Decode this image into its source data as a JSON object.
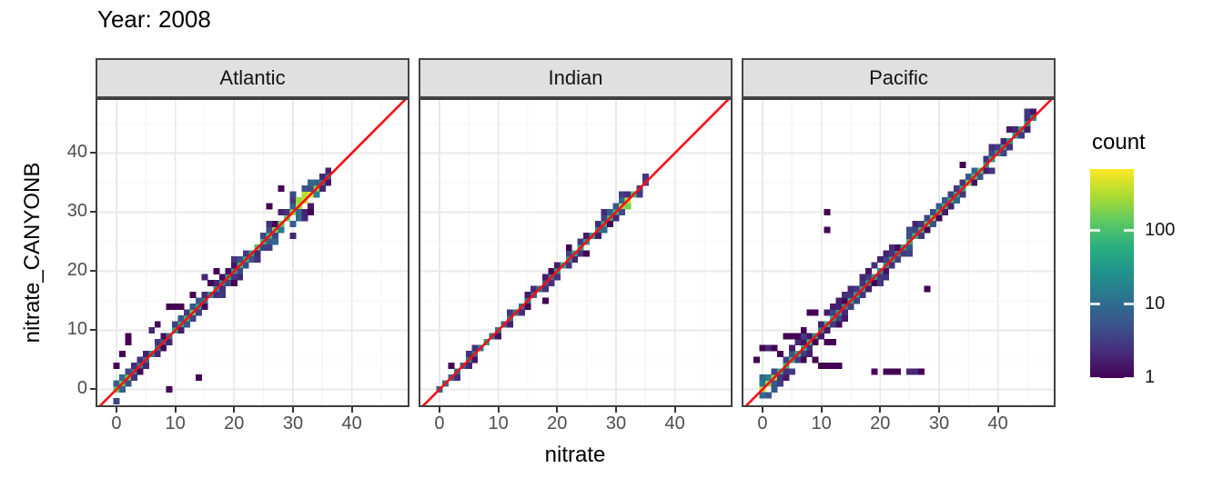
{
  "chart_data": {
    "type": "heatmap",
    "subtype": "geom_bin2d faceted scatter-density of predicted vs observed nitrate",
    "title": "Year: 2008",
    "xlabel": "nitrate",
    "ylabel": "nitrate_CANYONB",
    "facets": [
      "Atlantic",
      "Indian",
      "Pacific"
    ],
    "x_ticks": [
      0,
      10,
      20,
      30,
      40
    ],
    "y_ticks": [
      0,
      10,
      20,
      30,
      40
    ],
    "x_minor_ticks": [
      5,
      15,
      25,
      35,
      45
    ],
    "y_minor_ticks": [
      5,
      15,
      25,
      35,
      45
    ],
    "xlim": [
      -3.55,
      49.8
    ],
    "ylim": [
      -3.0,
      49.3
    ],
    "bin_width": 1,
    "grid": true,
    "reference_line": {
      "slope": 1,
      "intercept": 0,
      "color": "#f90f14"
    },
    "colors": {
      "panel_border": "#3f3f3f",
      "strip_fill": "#e0e0e0",
      "strip_border": "#454545",
      "grid_major": "#e9e9e9",
      "grid_minor": "#f4f4f4",
      "tick_text": "#4d4d4d"
    },
    "legend": {
      "title": "count",
      "position": "right",
      "scale": "log10",
      "ticks": [
        1,
        10,
        100
      ],
      "max_count": 690,
      "colormap": "viridis",
      "stops": [
        [
          0.0,
          "#440154"
        ],
        [
          0.125,
          "#472d7b"
        ],
        [
          0.25,
          "#3b528b"
        ],
        [
          0.375,
          "#2c728e"
        ],
        [
          0.5,
          "#21918c"
        ],
        [
          0.625,
          "#28ae80"
        ],
        [
          0.75,
          "#5ec962"
        ],
        [
          0.875,
          "#addc30"
        ],
        [
          1.0,
          "#fde725"
        ]
      ]
    },
    "panels": [
      {
        "name": "Atlantic",
        "seed": 11,
        "diag_range": [
          0,
          36
        ],
        "diagonal": [
          {
            "x0": 0,
            "x1": 2,
            "count": 130,
            "spread": 1.5
          },
          {
            "x0": 3,
            "x1": 9,
            "count": 15,
            "spread": 1.2
          },
          {
            "x0": 10,
            "x1": 14,
            "count": 70,
            "spread": 1.3
          },
          {
            "x0": 15,
            "x1": 18,
            "count": 25,
            "spread": 1.3
          },
          {
            "x0": 19,
            "x1": 22,
            "count": 55,
            "spread": 1.5
          },
          {
            "x0": 23,
            "x1": 26,
            "count": 80,
            "spread": 1.8
          },
          {
            "x0": 27,
            "x1": 34,
            "count": 220,
            "spread": 2.2
          },
          {
            "x0": 35,
            "x1": 36,
            "count": 8,
            "spread": 1.0
          }
        ],
        "scatter": [
          {
            "x0": 0,
            "x1": 2,
            "dy0": 4,
            "dy1": 8,
            "p": 0.9
          },
          {
            "x0": 4,
            "x1": 11,
            "dy0": 2,
            "dy1": 5,
            "p": 0.75
          },
          {
            "x0": 13,
            "x1": 19,
            "dy0": 2,
            "dy1": 4,
            "p": 0.5
          },
          {
            "x0": 25,
            "x1": 30,
            "dy0": 2,
            "dy1": 3,
            "p": 0.5
          },
          {
            "x0": 16,
            "x1": 22,
            "dy0": -3,
            "dy1": -2,
            "p": 0.35
          },
          {
            "x0": 30,
            "x1": 35,
            "dy0": -4,
            "dy1": -2,
            "p": 0.6
          }
        ],
        "cells": [
          [
            9,
            0,
            1
          ],
          [
            14,
            2,
            1
          ],
          [
            28,
            34,
            1
          ],
          [
            26,
            31,
            1
          ],
          [
            2,
            9,
            1
          ],
          [
            0,
            0,
            150
          ],
          [
            1,
            1,
            140
          ],
          [
            13,
            13,
            130
          ],
          [
            32,
            33,
            320
          ],
          [
            33,
            33,
            600
          ],
          [
            32,
            32,
            420
          ],
          [
            31,
            32,
            260
          ]
        ]
      },
      {
        "name": "Indian",
        "seed": 23,
        "diag_range": [
          0,
          35
        ],
        "diagonal": [
          {
            "x0": 0,
            "x1": 19,
            "count": 12,
            "spread": 0.5
          },
          {
            "x0": 20,
            "x1": 27,
            "count": 35,
            "spread": 0.9
          },
          {
            "x0": 28,
            "x1": 33,
            "count": 120,
            "spread": 1.2
          },
          {
            "x0": 34,
            "x1": 35,
            "count": 6,
            "spread": 0.6
          }
        ],
        "scatter": [
          {
            "x0": 22,
            "x1": 28,
            "dy0": 1,
            "dy1": 2,
            "p": 0.4
          },
          {
            "x0": 22,
            "x1": 28,
            "dy0": -2,
            "dy1": -1,
            "p": 0.3
          }
        ],
        "cells": [
          [
            18,
            15,
            1
          ],
          [
            2,
            4,
            1
          ],
          [
            25,
            23,
            1
          ],
          [
            8,
            8,
            40
          ],
          [
            21,
            21,
            60
          ],
          [
            31,
            31,
            260
          ],
          [
            32,
            32,
            420
          ],
          [
            32,
            31,
            180
          ]
        ]
      },
      {
        "name": "Pacific",
        "seed": 37,
        "diag_range": [
          0,
          46.5
        ],
        "diagonal": [
          {
            "x0": 0,
            "x1": 2,
            "count": 200,
            "spread": 2.0
          },
          {
            "x0": 3,
            "x1": 8,
            "count": 60,
            "spread": 2.2
          },
          {
            "x0": 9,
            "x1": 15,
            "count": 45,
            "spread": 2.0
          },
          {
            "x0": 16,
            "x1": 24,
            "count": 35,
            "spread": 1.3
          },
          {
            "x0": 25,
            "x1": 31,
            "count": 85,
            "spread": 1.3
          },
          {
            "x0": 32,
            "x1": 37,
            "count": 100,
            "spread": 1.2
          },
          {
            "x0": 38,
            "x1": 41,
            "count": 45,
            "spread": 1.4
          },
          {
            "x0": 42,
            "x1": 46,
            "count": 25,
            "spread": 1.9
          }
        ],
        "scatter": [
          {
            "x0": -1,
            "x1": 3,
            "dy0": 3,
            "dy1": 7,
            "p": 0.8
          },
          {
            "x0": 4,
            "x1": 9,
            "dy0": 2,
            "dy1": 5,
            "p": 0.6
          },
          {
            "x0": 5,
            "x1": 12,
            "dy0": -4,
            "dy1": -2,
            "p": 0.6
          },
          {
            "x0": 13,
            "x1": 17,
            "dy0": 1,
            "dy1": 3,
            "p": 0.4
          }
        ],
        "cells": [
          [
            0,
            0,
            350
          ],
          [
            1,
            1,
            160
          ],
          [
            10,
            4,
            1
          ],
          [
            11,
            4,
            1
          ],
          [
            12,
            4,
            1
          ],
          [
            13,
            4,
            1
          ],
          [
            19,
            3,
            1
          ],
          [
            21,
            3,
            1
          ],
          [
            22,
            3,
            1
          ],
          [
            23,
            3,
            1
          ],
          [
            25,
            3,
            2
          ],
          [
            26,
            3,
            2
          ],
          [
            27,
            3,
            1
          ],
          [
            11,
            30,
            1
          ],
          [
            11,
            27,
            1
          ],
          [
            28,
            17,
            1
          ],
          [
            34,
            38,
            1
          ],
          [
            29,
            29,
            160
          ],
          [
            35,
            35,
            150
          ],
          [
            44,
            44,
            60
          ]
        ]
      }
    ]
  }
}
